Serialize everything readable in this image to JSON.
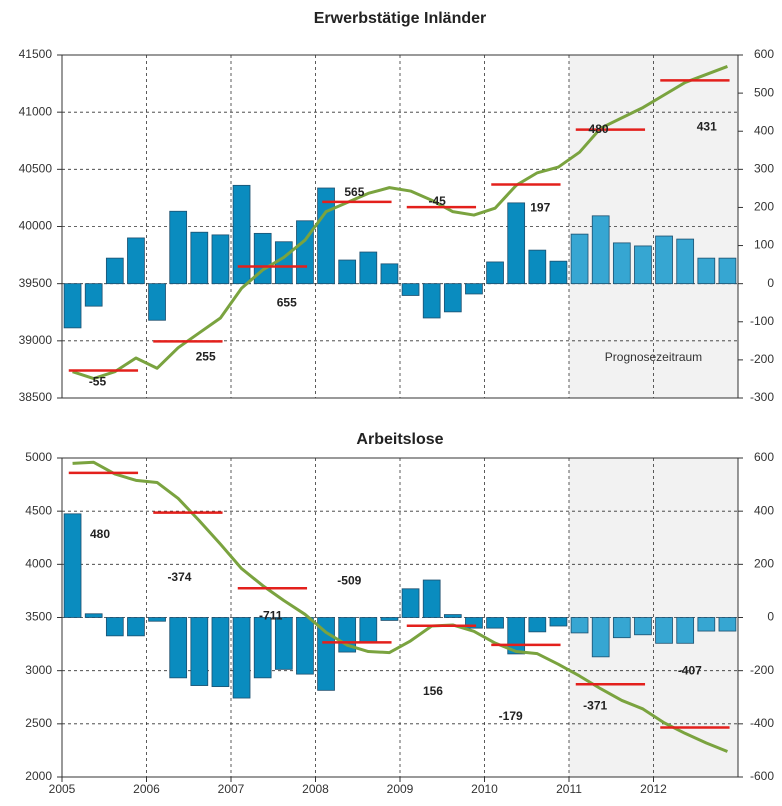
{
  "chart_data": [
    {
      "type": "combo",
      "title": "Erwerbstätige Inländer",
      "xlim": [
        2005,
        2013
      ],
      "ylim": [
        38500,
        41500
      ],
      "yticks": [
        38500,
        39000,
        39500,
        40000,
        40500,
        41000,
        41500
      ],
      "y2lim": [
        -300,
        600
      ],
      "y2ticks": [
        -300,
        -200,
        -100,
        0,
        100,
        200,
        300,
        400,
        500,
        600
      ],
      "grid": true,
      "shade": {
        "xlim": [
          2011,
          2013
        ],
        "label": "Prognosezeitraum",
        "color": "#f2f2f2"
      },
      "x": [
        2005.125,
        2005.375,
        2005.625,
        2005.875,
        2006.125,
        2006.375,
        2006.625,
        2006.875,
        2007.125,
        2007.375,
        2007.625,
        2007.875,
        2008.125,
        2008.375,
        2008.625,
        2008.875,
        2009.125,
        2009.375,
        2009.625,
        2009.875,
        2010.125,
        2010.375,
        2010.625,
        2010.875,
        2011.125,
        2011.375,
        2011.625,
        2011.875,
        2012.125,
        2012.375,
        2012.625,
        2012.875
      ],
      "series": [
        {
          "type": "bar",
          "axis": "y2",
          "color": "#0a8cbf",
          "forecast_color": "#36a6d2",
          "values": [
            -116,
            -59,
            67,
            120,
            -96,
            190,
            135,
            128,
            258,
            132,
            110,
            165,
            251,
            62,
            83,
            52,
            -31,
            -90,
            -74,
            -27,
            57,
            212,
            88,
            59,
            130,
            178,
            107,
            99,
            125,
            117,
            67,
            67
          ]
        },
        {
          "type": "line",
          "color": "#7aa33f",
          "values": [
            38730,
            38670,
            38730,
            38850,
            38760,
            38940,
            39070,
            39200,
            39460,
            39620,
            39730,
            39880,
            40130,
            40210,
            40290,
            40340,
            40310,
            40230,
            40130,
            40100,
            40160,
            40360,
            40470,
            40520,
            40650,
            40860,
            40950,
            41040,
            41150,
            41260,
            41330,
            41400
          ]
        }
      ],
      "annual": {
        "x": [
          2005,
          2006,
          2007,
          2008,
          2009,
          2010,
          2011,
          2012
        ],
        "values": [
          38740,
          38995,
          39650,
          40215,
          40170,
          40367,
          40847,
          41278
        ],
        "changes": [
          -55,
          255,
          655,
          565,
          -45,
          197,
          480,
          431
        ],
        "color": "#e3201c"
      }
    },
    {
      "type": "combo",
      "title": "Arbeitslose",
      "xlim": [
        2005,
        2013
      ],
      "xticks": [
        2005,
        2006,
        2007,
        2008,
        2009,
        2010,
        2011,
        2012
      ],
      "ylim": [
        2000,
        5000
      ],
      "yticks": [
        2000,
        2500,
        3000,
        3500,
        4000,
        4500,
        5000
      ],
      "y2lim": [
        -600,
        600
      ],
      "y2ticks": [
        -600,
        -400,
        -200,
        0,
        200,
        400,
        600
      ],
      "grid": true,
      "shade": {
        "xlim": [
          2011,
          2013
        ],
        "color": "#f2f2f2"
      },
      "x": [
        2005.125,
        2005.375,
        2005.625,
        2005.875,
        2006.125,
        2006.375,
        2006.625,
        2006.875,
        2007.125,
        2007.375,
        2007.625,
        2007.875,
        2008.125,
        2008.375,
        2008.625,
        2008.875,
        2009.125,
        2009.375,
        2009.625,
        2009.875,
        2010.125,
        2010.375,
        2010.625,
        2010.875,
        2011.125,
        2011.375,
        2011.625,
        2011.875,
        2012.125,
        2012.375,
        2012.625,
        2012.875
      ],
      "series": [
        {
          "type": "bar",
          "axis": "y2",
          "color": "#0a8cbf",
          "forecast_color": "#36a6d2",
          "values": [
            390,
            14,
            -69,
            -69,
            -14,
            -227,
            -256,
            -260,
            -303,
            -227,
            -195,
            -213,
            -274,
            -130,
            -94,
            -11,
            108,
            141,
            11,
            -40,
            -40,
            -137,
            -54,
            -32,
            -58,
            -148,
            -76,
            -65,
            -97,
            -97,
            -51,
            -51
          ]
        },
        {
          "type": "line",
          "color": "#7aa33f",
          "values": [
            4950,
            4960,
            4850,
            4790,
            4770,
            4620,
            4410,
            4190,
            3960,
            3800,
            3660,
            3530,
            3360,
            3240,
            3180,
            3170,
            3280,
            3420,
            3430,
            3370,
            3260,
            3180,
            3160,
            3060,
            2950,
            2830,
            2720,
            2640,
            2510,
            2410,
            2320,
            2240
          ]
        }
      ],
      "annual": {
        "x": [
          2005,
          2006,
          2007,
          2008,
          2009,
          2010,
          2011,
          2012
        ],
        "values": [
          4860,
          4486,
          3775,
          3266,
          3422,
          3243,
          2872,
          2465
        ],
        "changes": [
          480,
          -374,
          -711,
          -509,
          156,
          -179,
          -371,
          -407
        ],
        "color": "#e3201c"
      }
    }
  ]
}
